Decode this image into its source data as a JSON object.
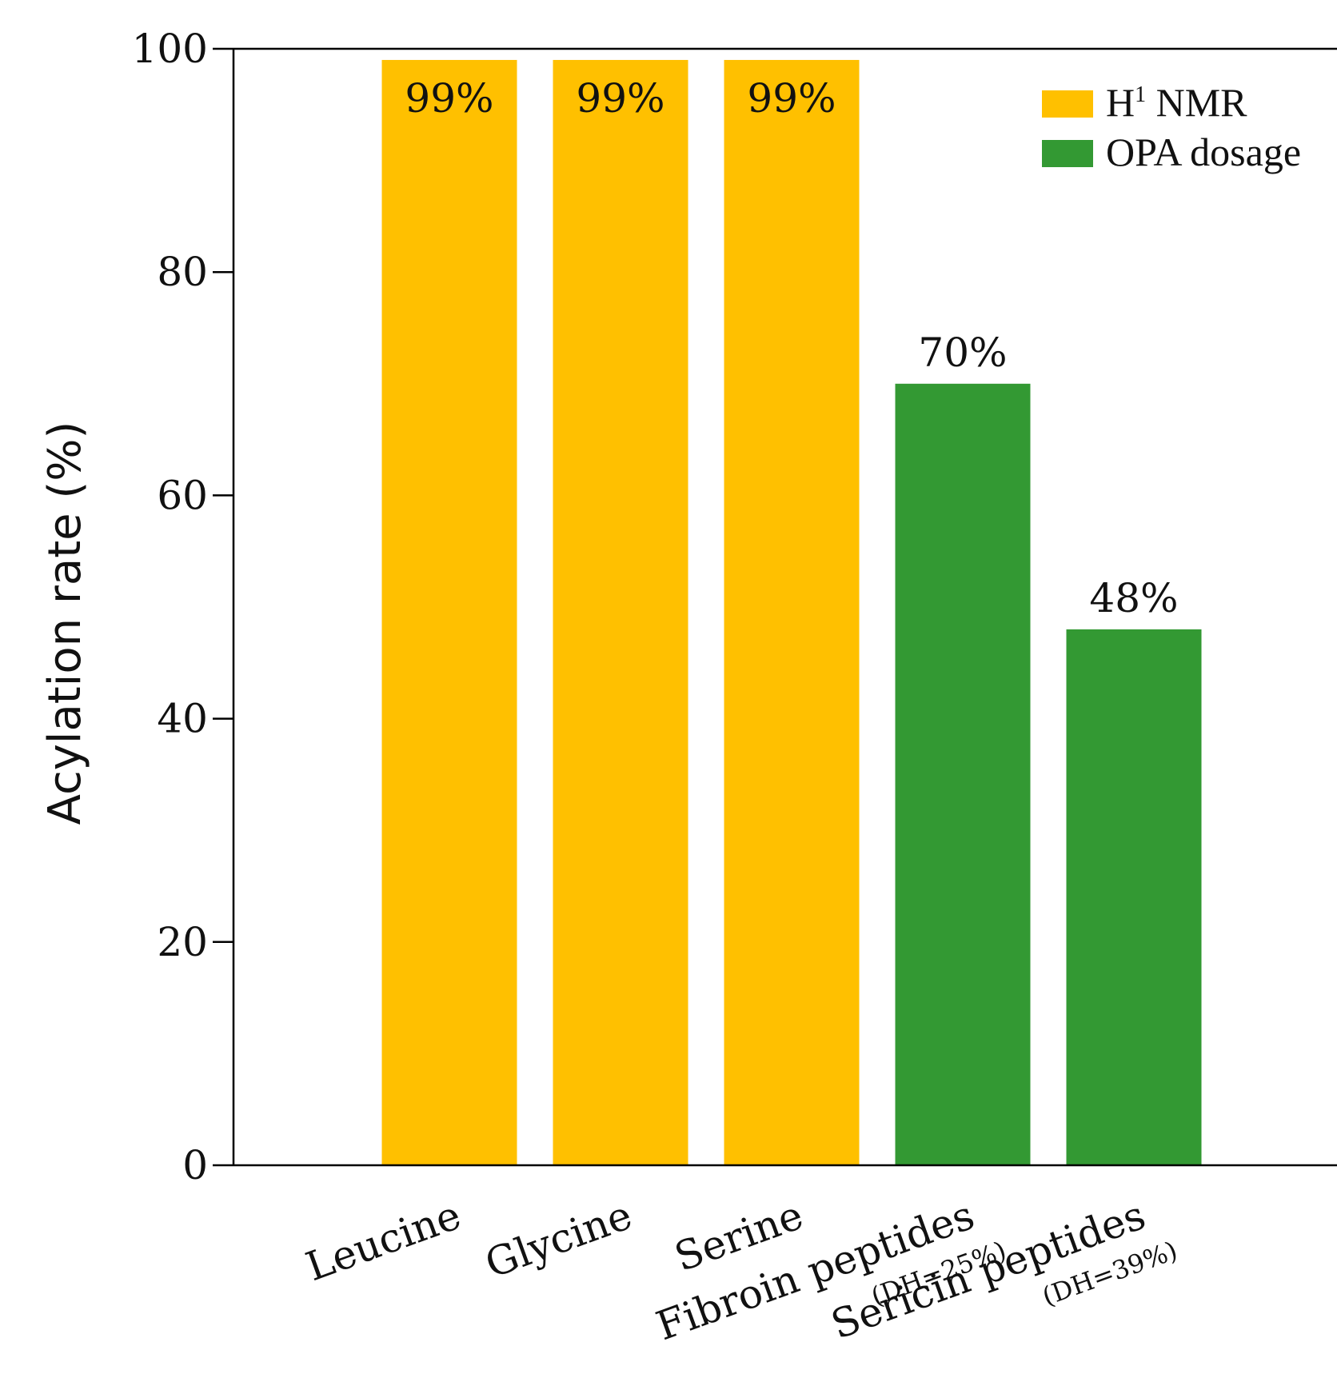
{
  "chart_data": {
    "type": "bar",
    "title": "",
    "xlabel": "",
    "ylabel": "Acylation rate (%)",
    "ylim": [
      0,
      100
    ],
    "yticks": [
      0,
      20,
      40,
      60,
      80,
      100
    ],
    "grid": false,
    "legend_position": "top-right",
    "categories": [
      {
        "name": "Leucine",
        "sub": ""
      },
      {
        "name": "Glycine",
        "sub": ""
      },
      {
        "name": "Serine",
        "sub": ""
      },
      {
        "name": "Fibroin peptides",
        "sub": "(DH=25%)"
      },
      {
        "name": "Sericin peptides",
        "sub": "(DH=39%)"
      }
    ],
    "values": [
      99,
      99,
      99,
      70,
      48
    ],
    "data_labels": [
      "99%",
      "99%",
      "99%",
      "70%",
      "48%"
    ],
    "bar_series": [
      0,
      0,
      0,
      1,
      1
    ],
    "series": [
      {
        "name": "H1 NMR",
        "name_main": "H",
        "name_sup": "1",
        "name_rest": " NMR",
        "color": "#FFC000"
      },
      {
        "name": "OPA dosage",
        "name_main": "OPA dosage",
        "name_sup": "",
        "name_rest": "",
        "color": "#339933"
      }
    ]
  }
}
